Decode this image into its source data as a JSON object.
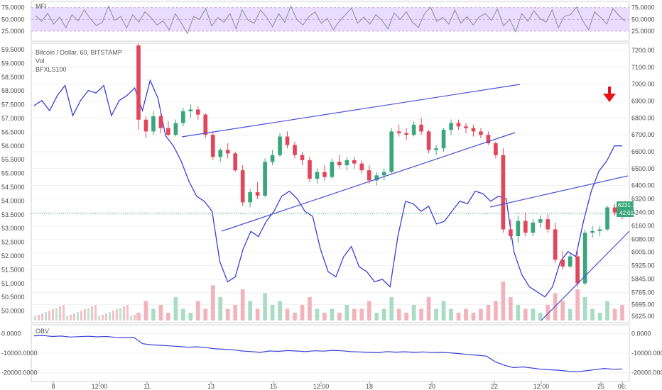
{
  "header": {
    "symbol_title": "Bitcoin / Dollar, 60, BITSTAMP",
    "vol_label": "Vol",
    "overlay_label": "BFXLS100"
  },
  "colors": {
    "up": "#3aa67b",
    "down": "#e0475a",
    "overlay_line": "#3b3fd6",
    "trendline": "#4a4fd6",
    "mfi_band": "#e9dcff",
    "mfi_line": "#8a8f8a",
    "price_tag": "#3aa67b",
    "arrow": "#e8141c"
  },
  "chart_data": [
    {
      "type": "line",
      "title": "MFI",
      "ylim": [
        10,
        82
      ],
      "yticks": [
        "75.0000",
        "50.0000",
        "25.0000"
      ],
      "yticks_right": [
        "75.0000",
        "50.0000",
        "25.0000"
      ],
      "band": [
        25,
        75
      ],
      "series": [
        {
          "values": [
            58,
            46,
            63,
            40,
            55,
            32,
            60,
            47,
            70,
            52,
            37,
            44,
            78,
            48,
            56,
            32,
            60,
            44,
            66,
            54,
            38,
            47,
            28,
            62,
            42,
            20,
            56,
            50,
            73,
            36,
            54,
            44,
            62,
            30,
            70,
            48,
            42,
            70,
            55,
            34,
            62,
            44,
            78,
            50,
            38,
            56,
            66,
            42,
            52,
            28,
            46,
            60,
            74,
            42,
            55,
            40,
            60,
            48,
            30,
            64,
            50,
            66,
            44,
            33,
            62,
            76,
            46,
            54,
            40,
            70,
            42,
            56,
            38,
            55,
            62,
            48,
            72,
            36,
            50,
            24,
            62,
            46,
            68,
            52,
            44,
            70,
            32,
            56,
            60,
            76,
            48,
            28,
            66,
            54,
            40,
            73,
            58,
            46
          ]
        }
      ]
    },
    {
      "type": "candlestick",
      "title": "Bitcoin / Dollar, 60, BITSTAMP",
      "xlabel": "",
      "ylabel": "",
      "ylim": [
        5600,
        7230
      ],
      "yticks_right": [
        "7200.00",
        "7100.00",
        "7000.00",
        "6900.00",
        "6800.00",
        "6700.00",
        "6600.00",
        "6500.00",
        "6400.00",
        "6320.00",
        "6240.00",
        "6160.00",
        "6080.00",
        "6005.00",
        "5925.00",
        "5845.00",
        "5765.00",
        "5695.00",
        "5625.00"
      ],
      "x_tick_labels": [
        "8",
        "12:00",
        "11",
        "13",
        "15",
        "12:00",
        "18",
        "20",
        "22",
        "12:00",
        "25",
        "06:"
      ],
      "last_price": "6231.73",
      "countdown": "42:01",
      "candles": [
        [
          7230,
          7240,
          6730,
          6790
        ],
        [
          6790,
          6810,
          6680,
          6720
        ],
        [
          6720,
          6840,
          6700,
          6810
        ],
        [
          6810,
          6830,
          6710,
          6740
        ],
        [
          6740,
          6780,
          6690,
          6700
        ],
        [
          6700,
          6790,
          6690,
          6770
        ],
        [
          6770,
          6860,
          6750,
          6840
        ],
        [
          6840,
          6880,
          6800,
          6850
        ],
        [
          6850,
          6870,
          6790,
          6820
        ],
        [
          6820,
          6830,
          6680,
          6700
        ],
        [
          6700,
          6720,
          6550,
          6570
        ],
        [
          6570,
          6620,
          6540,
          6610
        ],
        [
          6610,
          6650,
          6560,
          6590
        ],
        [
          6590,
          6600,
          6480,
          6490
        ],
        [
          6490,
          6520,
          6280,
          6300
        ],
        [
          6300,
          6380,
          6270,
          6360
        ],
        [
          6360,
          6420,
          6320,
          6340
        ],
        [
          6340,
          6560,
          6330,
          6540
        ],
        [
          6540,
          6610,
          6520,
          6580
        ],
        [
          6580,
          6710,
          6570,
          6690
        ],
        [
          6690,
          6720,
          6620,
          6640
        ],
        [
          6640,
          6660,
          6560,
          6580
        ],
        [
          6580,
          6600,
          6520,
          6550
        ],
        [
          6550,
          6570,
          6420,
          6440
        ],
        [
          6440,
          6500,
          6410,
          6480
        ],
        [
          6480,
          6520,
          6430,
          6450
        ],
        [
          6450,
          6560,
          6440,
          6540
        ],
        [
          6540,
          6580,
          6500,
          6520
        ],
        [
          6520,
          6570,
          6490,
          6550
        ],
        [
          6550,
          6570,
          6500,
          6530
        ],
        [
          6530,
          6550,
          6470,
          6490
        ],
        [
          6490,
          6520,
          6410,
          6430
        ],
        [
          6430,
          6480,
          6400,
          6460
        ],
        [
          6460,
          6500,
          6430,
          6480
        ],
        [
          6480,
          6740,
          6470,
          6720
        ],
        [
          6720,
          6760,
          6690,
          6710
        ],
        [
          6710,
          6740,
          6670,
          6700
        ],
        [
          6700,
          6780,
          6690,
          6760
        ],
        [
          6760,
          6800,
          6700,
          6720
        ],
        [
          6720,
          6730,
          6590,
          6610
        ],
        [
          6610,
          6640,
          6580,
          6620
        ],
        [
          6620,
          6740,
          6600,
          6730
        ],
        [
          6730,
          6790,
          6700,
          6770
        ],
        [
          6770,
          6790,
          6730,
          6750
        ],
        [
          6750,
          6770,
          6710,
          6740
        ],
        [
          6740,
          6760,
          6690,
          6720
        ],
        [
          6720,
          6740,
          6680,
          6700
        ],
        [
          6700,
          6720,
          6640,
          6650
        ],
        [
          6650,
          6660,
          6560,
          6580
        ],
        [
          6580,
          6620,
          6120,
          6140
        ],
        [
          6140,
          6200,
          6080,
          6100
        ],
        [
          6100,
          6220,
          6060,
          6190
        ],
        [
          6190,
          6240,
          6100,
          6120
        ],
        [
          6120,
          6200,
          6100,
          6180
        ],
        [
          6180,
          6220,
          6150,
          6200
        ],
        [
          6200,
          6230,
          6120,
          6140
        ],
        [
          6140,
          6180,
          5940,
          5960
        ],
        [
          5960,
          6010,
          5900,
          5920
        ],
        [
          5920,
          6000,
          5910,
          5980
        ],
        [
          5980,
          6010,
          5800,
          5820
        ],
        [
          5820,
          6140,
          5810,
          6120
        ],
        [
          6120,
          6160,
          6090,
          6130
        ],
        [
          6130,
          6160,
          6100,
          6140
        ],
        [
          6140,
          6280,
          6130,
          6270
        ],
        [
          6270,
          6290,
          6220,
          6240
        ],
        [
          6240,
          6260,
          6200,
          6230
        ]
      ],
      "overlay_series": {
        "name": "BFXLS100"
      },
      "volume_relative": [
        0.2,
        0.5,
        0.3,
        0.4,
        0.2,
        0.6,
        0.3,
        0.2,
        0.5,
        0.3,
        0.9,
        0.6,
        0.3,
        0.4,
        0.8,
        0.5,
        0.3,
        0.7,
        0.4,
        0.5,
        0.3,
        0.2,
        0.4,
        0.6,
        0.3,
        0.2,
        0.3,
        0.2,
        0.4,
        0.3,
        0.3,
        0.5,
        0.2,
        0.3,
        0.6,
        0.3,
        0.2,
        0.4,
        0.3,
        0.6,
        0.3,
        0.5,
        0.3,
        0.2,
        0.3,
        0.2,
        0.3,
        0.4,
        0.5,
        1.0,
        0.6,
        0.4,
        0.3,
        0.3,
        0.2,
        0.4,
        0.7,
        0.5,
        0.3,
        0.8,
        0.6,
        0.3,
        0.2,
        0.5,
        0.3,
        0.4
      ]
    },
    {
      "type": "line",
      "title": "OBV",
      "ylim": [
        -23000,
        3000
      ],
      "yticks": [
        "0.0000",
        "-10000.0000",
        "-20000.0000"
      ],
      "yticks_right": [
        "0.0000",
        "-10000.0000",
        "-20000.0000"
      ],
      "series": [
        {
          "values": [
            -1200,
            -1000,
            -1500,
            -1300,
            -1800,
            -1600,
            -1400,
            -1700,
            -1500,
            -2000,
            -2200,
            -1900,
            -5200,
            -5800,
            -6000,
            -6300,
            -6600,
            -7000,
            -6800,
            -7200,
            -7800,
            -8000,
            -8300,
            -8900,
            -9200,
            -9600,
            -8900,
            -9100,
            -8700,
            -8900,
            -9200,
            -8800,
            -9000,
            -8600,
            -8800,
            -9200,
            -9400,
            -9600,
            -9800,
            -9200,
            -9500,
            -9300,
            -9600,
            -9400,
            -9700,
            -9600,
            -9900,
            -10200,
            -10800,
            -11100,
            -11500,
            -14500,
            -16200,
            -17400,
            -17000,
            -17600,
            -18200,
            -18500,
            -18700,
            -19200,
            -19500,
            -19000,
            -18400,
            -17800,
            -18200,
            -18100
          ]
        }
      ]
    }
  ]
}
